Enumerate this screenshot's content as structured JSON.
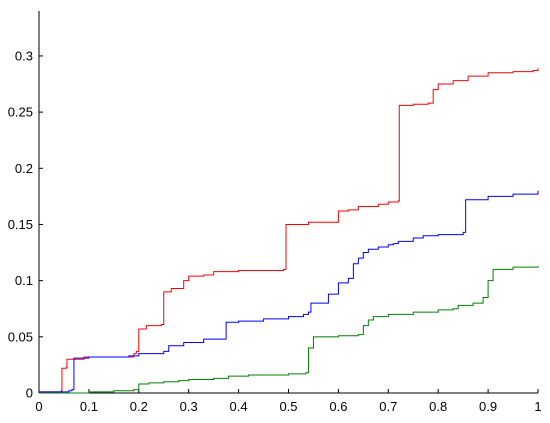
{
  "chart_data": {
    "type": "line",
    "title": "",
    "xlabel": "",
    "ylabel": "",
    "xlim": [
      0,
      1
    ],
    "ylim": [
      0,
      0.34
    ],
    "grid": false,
    "legend": "none",
    "x_ticks": [
      "0",
      "0.1",
      "0.2",
      "0.3",
      "0.4",
      "0.5",
      "0.6",
      "0.7",
      "0.8",
      "0.9",
      "1"
    ],
    "y_ticks": [
      "0",
      "0.05",
      "0.1",
      "0.15",
      "0.2",
      "0.25",
      "0.3"
    ],
    "series": [
      {
        "color": "#ff0000",
        "points": [
          [
            0,
            0.001
          ],
          [
            0.045,
            0.002
          ],
          [
            0.046,
            0.022
          ],
          [
            0.055,
            0.023
          ],
          [
            0.056,
            0.03
          ],
          [
            0.09,
            0.032
          ],
          [
            0.11,
            0.032
          ],
          [
            0.19,
            0.035
          ],
          [
            0.195,
            0.037
          ],
          [
            0.2,
            0.057
          ],
          [
            0.215,
            0.06
          ],
          [
            0.245,
            0.061
          ],
          [
            0.25,
            0.09
          ],
          [
            0.265,
            0.093
          ],
          [
            0.275,
            0.093
          ],
          [
            0.29,
            0.1
          ],
          [
            0.3,
            0.104
          ],
          [
            0.33,
            0.105
          ],
          [
            0.35,
            0.108
          ],
          [
            0.4,
            0.109
          ],
          [
            0.49,
            0.11
          ],
          [
            0.495,
            0.15
          ],
          [
            0.54,
            0.152
          ],
          [
            0.59,
            0.152
          ],
          [
            0.6,
            0.162
          ],
          [
            0.62,
            0.163
          ],
          [
            0.64,
            0.166
          ],
          [
            0.68,
            0.168
          ],
          [
            0.7,
            0.17
          ],
          [
            0.72,
            0.171
          ],
          [
            0.722,
            0.256
          ],
          [
            0.75,
            0.257
          ],
          [
            0.78,
            0.258
          ],
          [
            0.79,
            0.27
          ],
          [
            0.8,
            0.275
          ],
          [
            0.83,
            0.278
          ],
          [
            0.86,
            0.282
          ],
          [
            0.9,
            0.285
          ],
          [
            0.95,
            0.286
          ],
          [
            0.99,
            0.287
          ],
          [
            1,
            0.289
          ]
        ]
      },
      {
        "color": "#0000ff",
        "points": [
          [
            0,
            0.001
          ],
          [
            0.06,
            0.002
          ],
          [
            0.066,
            0.003
          ],
          [
            0.07,
            0.031
          ],
          [
            0.1,
            0.032
          ],
          [
            0.18,
            0.033
          ],
          [
            0.2,
            0.035
          ],
          [
            0.25,
            0.037
          ],
          [
            0.26,
            0.042
          ],
          [
            0.29,
            0.045
          ],
          [
            0.33,
            0.048
          ],
          [
            0.37,
            0.048
          ],
          [
            0.375,
            0.063
          ],
          [
            0.4,
            0.064
          ],
          [
            0.45,
            0.066
          ],
          [
            0.5,
            0.068
          ],
          [
            0.53,
            0.07
          ],
          [
            0.54,
            0.072
          ],
          [
            0.545,
            0.08
          ],
          [
            0.58,
            0.088
          ],
          [
            0.6,
            0.098
          ],
          [
            0.62,
            0.102
          ],
          [
            0.63,
            0.115
          ],
          [
            0.64,
            0.12
          ],
          [
            0.65,
            0.125
          ],
          [
            0.66,
            0.128
          ],
          [
            0.68,
            0.13
          ],
          [
            0.7,
            0.132
          ],
          [
            0.71,
            0.133
          ],
          [
            0.72,
            0.135
          ],
          [
            0.75,
            0.138
          ],
          [
            0.77,
            0.14
          ],
          [
            0.8,
            0.141
          ],
          [
            0.85,
            0.143
          ],
          [
            0.855,
            0.172
          ],
          [
            0.9,
            0.175
          ],
          [
            0.95,
            0.177
          ],
          [
            1,
            0.18
          ]
        ]
      },
      {
        "color": "#007f00",
        "points": [
          [
            0,
            0.0
          ],
          [
            0.06,
            0.0
          ],
          [
            0.1,
            0.001
          ],
          [
            0.15,
            0.002
          ],
          [
            0.19,
            0.003
          ],
          [
            0.2,
            0.008
          ],
          [
            0.22,
            0.009
          ],
          [
            0.24,
            0.009
          ],
          [
            0.25,
            0.01
          ],
          [
            0.28,
            0.011
          ],
          [
            0.3,
            0.012
          ],
          [
            0.35,
            0.013
          ],
          [
            0.38,
            0.015
          ],
          [
            0.42,
            0.016
          ],
          [
            0.5,
            0.017
          ],
          [
            0.535,
            0.018
          ],
          [
            0.54,
            0.04
          ],
          [
            0.55,
            0.05
          ],
          [
            0.6,
            0.051
          ],
          [
            0.64,
            0.052
          ],
          [
            0.65,
            0.06
          ],
          [
            0.66,
            0.065
          ],
          [
            0.67,
            0.068
          ],
          [
            0.7,
            0.07
          ],
          [
            0.75,
            0.072
          ],
          [
            0.8,
            0.074
          ],
          [
            0.83,
            0.075
          ],
          [
            0.84,
            0.078
          ],
          [
            0.87,
            0.08
          ],
          [
            0.89,
            0.085
          ],
          [
            0.9,
            0.1
          ],
          [
            0.91,
            0.11
          ],
          [
            0.95,
            0.112
          ],
          [
            1,
            0.113
          ]
        ]
      }
    ]
  }
}
